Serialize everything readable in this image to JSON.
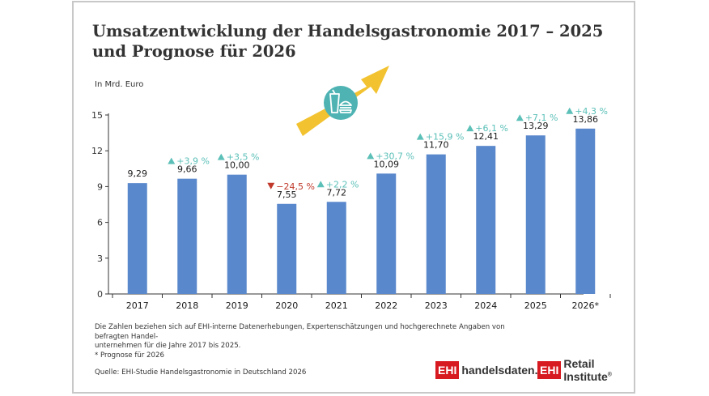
{
  "title_line1": "Umsatzentwicklung der Handelsgastronomie 2017 – 2025",
  "title_line2": "und Prognose für 2026",
  "unit_label": "In Mrd. Euro",
  "footnote_line1": "Die Zahlen beziehen sich auf EHI-interne Datenerhebungen, Expertenschätzungen und hochgerechnete Angaben von befragten Handel-",
  "footnote_line2": "unternehmen für die Jahre 2017 bis 2025.",
  "footnote_line3": "* Prognose für 2026",
  "source": "Quelle: EHI-Studie Handelsgastronomie in Deutschland 2026",
  "logos": [
    {
      "badge": "EHI",
      "name": "handelsdaten.de",
      "reg": ""
    },
    {
      "badge": "EHI",
      "name": "Retail Institute",
      "reg": "®"
    }
  ],
  "icon": "snack-and-drink-icon",
  "colors": {
    "bar": "#5a88cc",
    "up": "#5cc0b8",
    "down": "#c0392b",
    "arrow": "#f2c230",
    "icon_bg": "#4fb3b3"
  },
  "chart_data": {
    "type": "bar",
    "title": "Umsatzentwicklung der Handelsgastronomie 2017 – 2025 und Prognose für 2026",
    "ylabel": "In Mrd. Euro",
    "categories": [
      "2017",
      "2018",
      "2019",
      "2020",
      "2021",
      "2022",
      "2023",
      "2024",
      "2025",
      "2026*"
    ],
    "values": [
      9.29,
      9.66,
      10.0,
      7.55,
      7.72,
      10.09,
      11.7,
      12.41,
      13.29,
      13.86
    ],
    "value_labels": [
      "9,29",
      "9,66",
      "10,00",
      "7,55",
      "7,72",
      "10,09",
      "11,70",
      "12,41",
      "13,29",
      "13,86"
    ],
    "changes": [
      "",
      "+3,9 %",
      "+3,5 %",
      "−24,5 %",
      "+2,2 %",
      "+30,7 %",
      "+15,9 %",
      "+6,1 %",
      "+7,1 %",
      "+4,3 %"
    ],
    "change_dir": [
      "",
      "up",
      "up",
      "down",
      "up",
      "up",
      "up",
      "up",
      "up",
      "up"
    ],
    "yticks": [
      0,
      3,
      6,
      9,
      12,
      15
    ],
    "ylim": [
      0,
      15
    ],
    "grid": false
  }
}
